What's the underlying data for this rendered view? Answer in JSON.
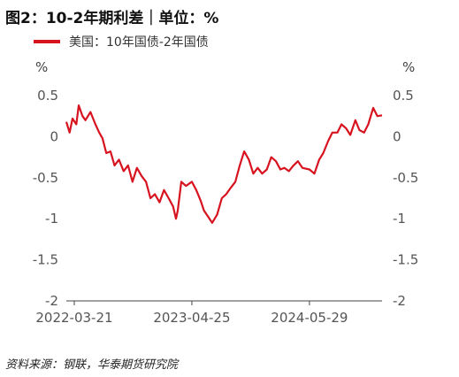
{
  "title": "图2：10-2年期利差｜单位：%",
  "legend": [
    "美国：10年国债-2年国债"
  ],
  "left_unit": "%",
  "right_unit": "%",
  "source": "资料来源：钢联，华泰期货研究院",
  "colors": {
    "series": "#d7131f",
    "axis": "#444444"
  },
  "chart_data": {
    "type": "line",
    "title": "图2：10-2年期利差｜单位：%",
    "ylabel": "%",
    "ylim": [
      -2,
      0.5
    ],
    "yticks": [
      0.5,
      0,
      -0.5,
      -1,
      -1.5,
      -2
    ],
    "ytick_labels": [
      "0.5",
      "0",
      "-0.5",
      "-1",
      "-1.5",
      "-2"
    ],
    "xlim": [
      "2022-02-22",
      "2025-01-31"
    ],
    "xticks": [
      "2022-03-21",
      "2023-04-25",
      "2024-05-29"
    ],
    "series": [
      {
        "name": "美国：10年国债-2年国债",
        "x": [
          "2022-02-22",
          "2022-03-05",
          "2022-03-15",
          "2022-03-28",
          "2022-04-05",
          "2022-04-18",
          "2022-04-28",
          "2022-05-15",
          "2022-06-01",
          "2022-06-14",
          "2022-06-25",
          "2022-07-08",
          "2022-07-22",
          "2022-08-05",
          "2022-08-20",
          "2022-09-05",
          "2022-09-20",
          "2022-10-05",
          "2022-10-20",
          "2022-11-05",
          "2022-11-20",
          "2022-12-05",
          "2022-12-20",
          "2023-01-05",
          "2023-01-20",
          "2023-02-05",
          "2023-02-20",
          "2023-03-02",
          "2023-03-08",
          "2023-03-20",
          "2023-04-05",
          "2023-04-25",
          "2023-05-10",
          "2023-05-25",
          "2023-06-05",
          "2023-06-20",
          "2023-07-03",
          "2023-07-20",
          "2023-08-05",
          "2023-08-20",
          "2023-09-05",
          "2023-09-20",
          "2023-10-05",
          "2023-10-20",
          "2023-11-05",
          "2023-11-20",
          "2023-12-05",
          "2023-12-20",
          "2024-01-05",
          "2024-01-20",
          "2024-02-05",
          "2024-02-20",
          "2024-03-05",
          "2024-03-20",
          "2024-04-05",
          "2024-04-20",
          "2024-05-05",
          "2024-05-29",
          "2024-06-15",
          "2024-07-01",
          "2024-07-15",
          "2024-08-01",
          "2024-08-15",
          "2024-09-01",
          "2024-09-15",
          "2024-10-01",
          "2024-10-15",
          "2024-11-01",
          "2024-11-15",
          "2024-12-01",
          "2024-12-15",
          "2025-01-01",
          "2025-01-15",
          "2025-01-31"
        ],
        "y": [
          0.18,
          0.05,
          0.22,
          0.15,
          0.38,
          0.25,
          0.2,
          0.3,
          0.15,
          0.05,
          -0.02,
          -0.2,
          -0.18,
          -0.35,
          -0.28,
          -0.42,
          -0.35,
          -0.55,
          -0.38,
          -0.48,
          -0.55,
          -0.75,
          -0.7,
          -0.8,
          -0.65,
          -0.75,
          -0.85,
          -1.0,
          -0.9,
          -0.55,
          -0.6,
          -0.55,
          -0.65,
          -0.78,
          -0.9,
          -0.98,
          -1.05,
          -0.95,
          -0.75,
          -0.7,
          -0.62,
          -0.55,
          -0.35,
          -0.18,
          -0.28,
          -0.45,
          -0.38,
          -0.45,
          -0.4,
          -0.25,
          -0.3,
          -0.4,
          -0.38,
          -0.42,
          -0.35,
          -0.3,
          -0.38,
          -0.4,
          -0.45,
          -0.28,
          -0.2,
          -0.05,
          0.05,
          0.05,
          0.15,
          0.1,
          0.02,
          0.2,
          0.08,
          0.05,
          0.15,
          0.35,
          0.25,
          0.26
        ]
      }
    ],
    "grid": false,
    "legend_position": "top-left"
  }
}
